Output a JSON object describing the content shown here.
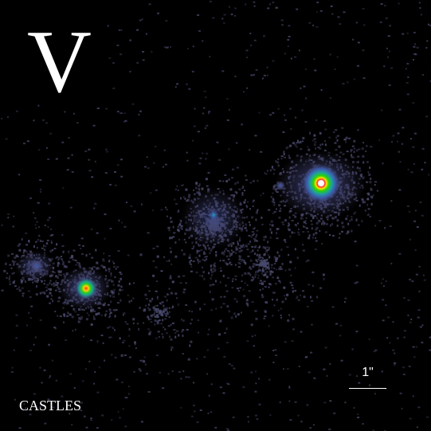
{
  "image": {
    "band": "V",
    "credit": "CASTLES",
    "scale_label": "1\"",
    "background_color": "#000000",
    "noise_color": "#4a4a6e"
  },
  "sources": [
    {
      "name": "bright-quasar-image",
      "core_color": "#ffffff",
      "ring_colors": [
        "#ff2a2a",
        "#ffe000",
        "#2bd400",
        "#1fa39a",
        "#3a5fb0",
        "#4b4b7a"
      ]
    },
    {
      "name": "faint-quasar-image",
      "core_color": "#ff3020",
      "ring_colors": [
        "#ffd000",
        "#30d020",
        "#1a9f90",
        "#4a4a80"
      ]
    },
    {
      "name": "lens-galaxy",
      "core_color": "#1aa79a",
      "ring_colors": [
        "#4a4a7a"
      ]
    },
    {
      "name": "companion-blob",
      "core_color": "#3a5fb0",
      "ring_colors": [
        "#4a4a7a"
      ]
    }
  ]
}
